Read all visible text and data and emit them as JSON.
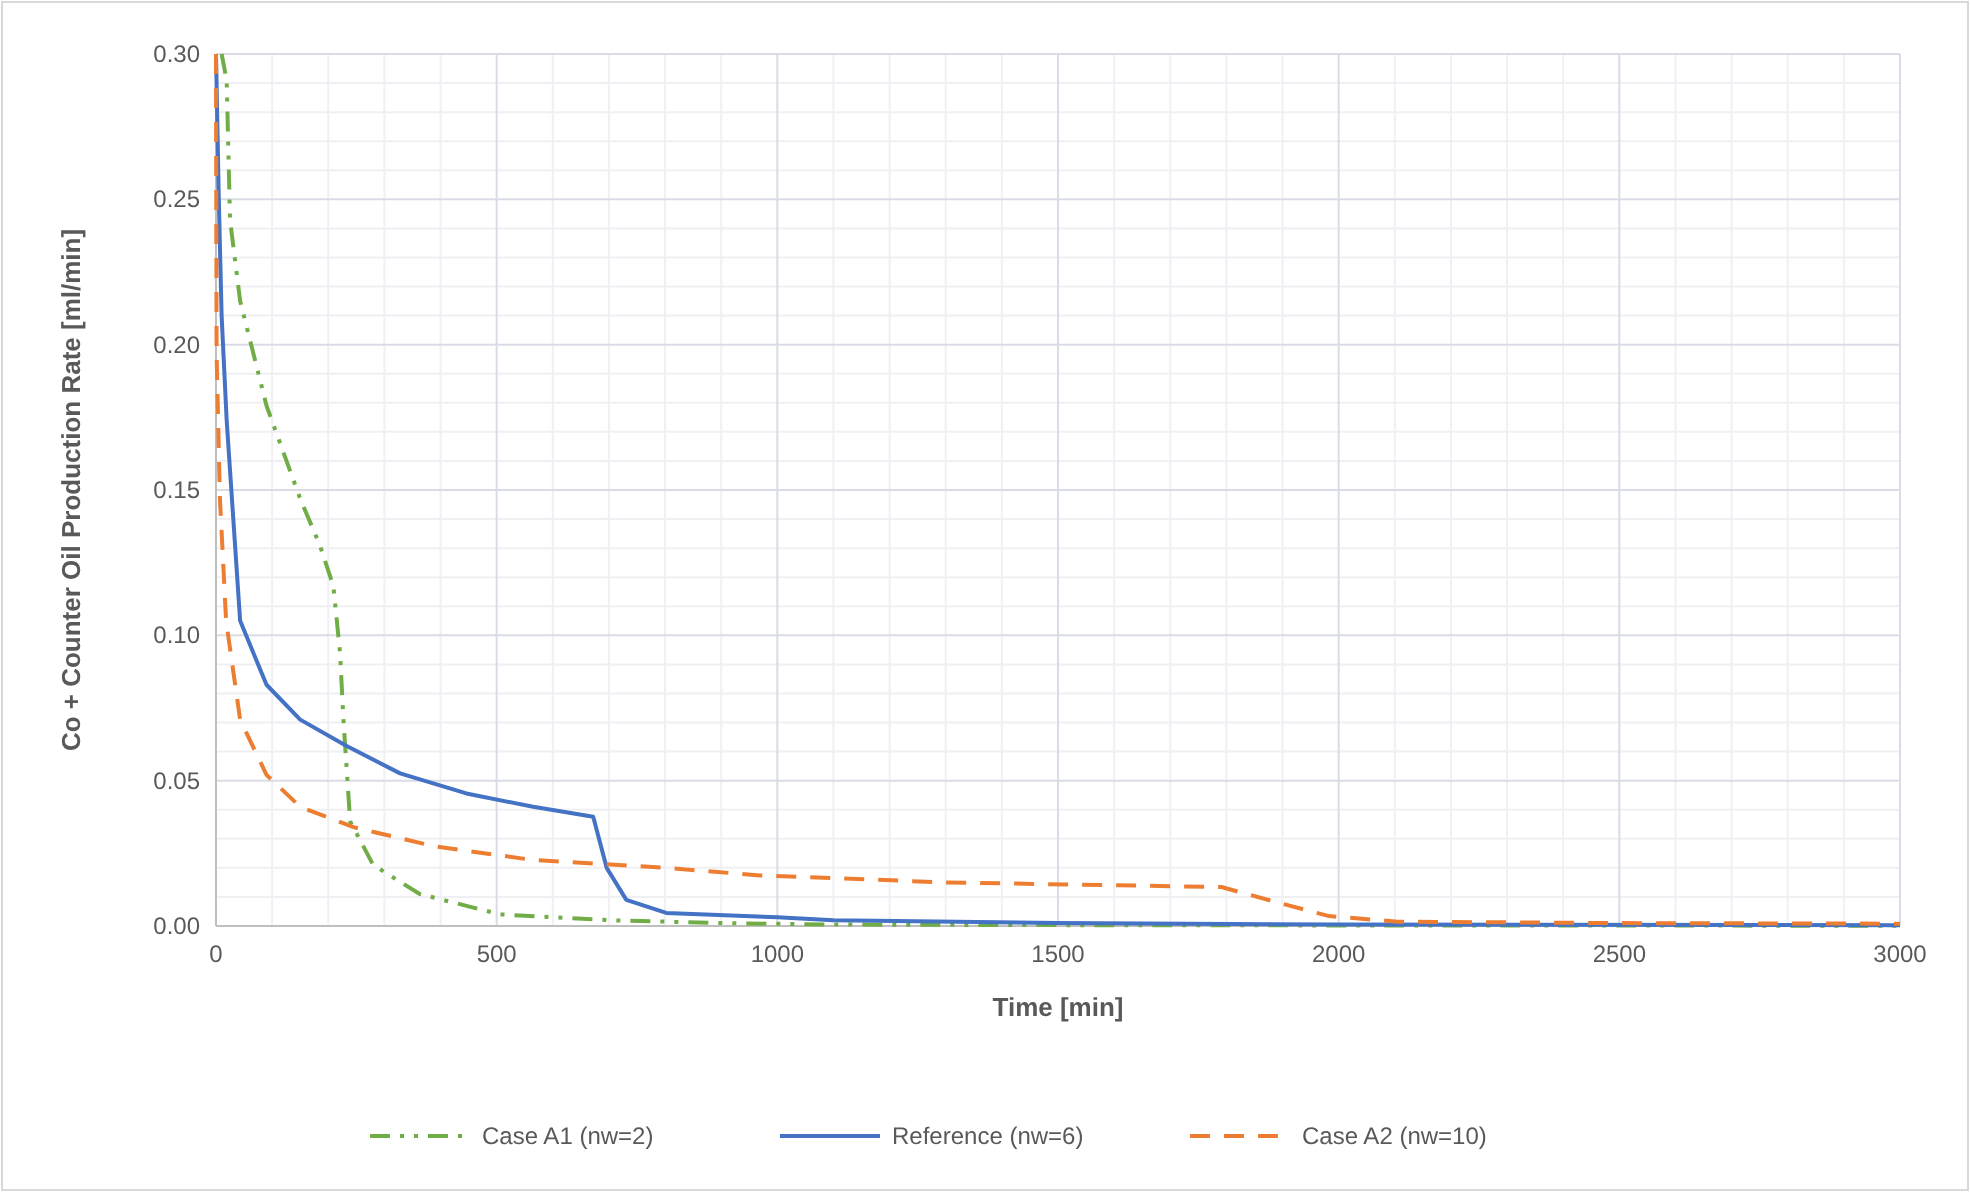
{
  "chart_data": {
    "type": "line",
    "xlabel": "Time [min]",
    "ylabel": "Co + Counter Oil Production Rate  [ml/min]",
    "xlim": [
      0,
      3000
    ],
    "ylim": [
      0,
      0.3
    ],
    "xticks": [
      0,
      500,
      1000,
      1500,
      2000,
      2500,
      3000
    ],
    "yticks": [
      {
        "value": 0,
        "label": "0.00"
      },
      {
        "value": 0.05,
        "label": "0.05"
      },
      {
        "value": 0.1,
        "label": "0.10"
      },
      {
        "value": 0.15,
        "label": "0.15"
      },
      {
        "value": 0.2,
        "label": "0.20"
      },
      {
        "value": 0.25,
        "label": "0.25"
      },
      {
        "value": 0.3,
        "label": "0.30"
      }
    ],
    "grid": true,
    "legend": "bottom",
    "series": [
      {
        "name": "Case A1 (nw=2)",
        "color": "#70ad47",
        "line_style": "dashdot",
        "x": [
          10,
          19,
          25,
          43,
          90,
          150,
          185,
          209,
          221,
          227,
          239,
          280,
          363,
          506,
          700,
          900,
          1100,
          1500,
          2000,
          3000
        ],
        "values": [
          0.3,
          0.291,
          0.243,
          0.215,
          0.179,
          0.147,
          0.131,
          0.117,
          0.094,
          0.071,
          0.036,
          0.021,
          0.011,
          0.004,
          0.002,
          0.001,
          0.0005,
          0.0003,
          0.0002,
          0.0001
        ]
      },
      {
        "name": "Reference (nw=6)",
        "color": "#4472c4",
        "line_style": "solid",
        "x": [
          0,
          5,
          10,
          19,
          43,
          90,
          150,
          232,
          328,
          446,
          565,
          672,
          696,
          731,
          802,
          1000,
          1100,
          1500,
          2000,
          3000
        ],
        "values": [
          0.3,
          0.25,
          0.21,
          0.174,
          0.105,
          0.083,
          0.071,
          0.062,
          0.0525,
          0.0456,
          0.041,
          0.0376,
          0.02,
          0.009,
          0.0045,
          0.003,
          0.002,
          0.001,
          0.0005,
          0.0003
        ]
      },
      {
        "name": "Case A2 (nw=10)",
        "color": "#ed7d31",
        "line_style": "dashed",
        "x": [
          0,
          1,
          7,
          18,
          43,
          90,
          150,
          245,
          387,
          565,
          802,
          969,
          1300,
          1791,
          1914,
          1983,
          2105,
          2500,
          3000
        ],
        "values": [
          0.3,
          0.197,
          0.147,
          0.105,
          0.071,
          0.052,
          0.041,
          0.034,
          0.0275,
          0.0227,
          0.02,
          0.0174,
          0.015,
          0.0134,
          0.0069,
          0.0034,
          0.0015,
          0.001,
          0.0008
        ]
      }
    ]
  }
}
